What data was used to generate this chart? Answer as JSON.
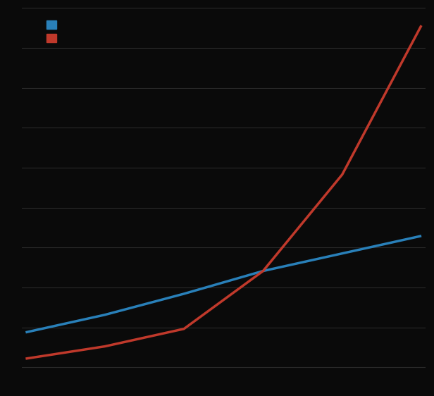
{
  "background_color": "#0a0a0a",
  "grid_color": "#2a2a2a",
  "blue_color": "#2980b9",
  "red_color": "#c0392b",
  "x": [
    0,
    1,
    2,
    3,
    4,
    5
  ],
  "blue_y": [
    2.0,
    3.0,
    4.2,
    5.5,
    6.5,
    7.5
  ],
  "red_y": [
    0.5,
    1.2,
    2.2,
    5.5,
    11.0,
    19.5
  ],
  "ylim": [
    -0.5,
    20.5
  ],
  "xlim": [
    -0.05,
    5.05
  ],
  "legend_label_blue": "",
  "legend_label_red": "",
  "line_width": 2.5,
  "n_gridlines": 10
}
